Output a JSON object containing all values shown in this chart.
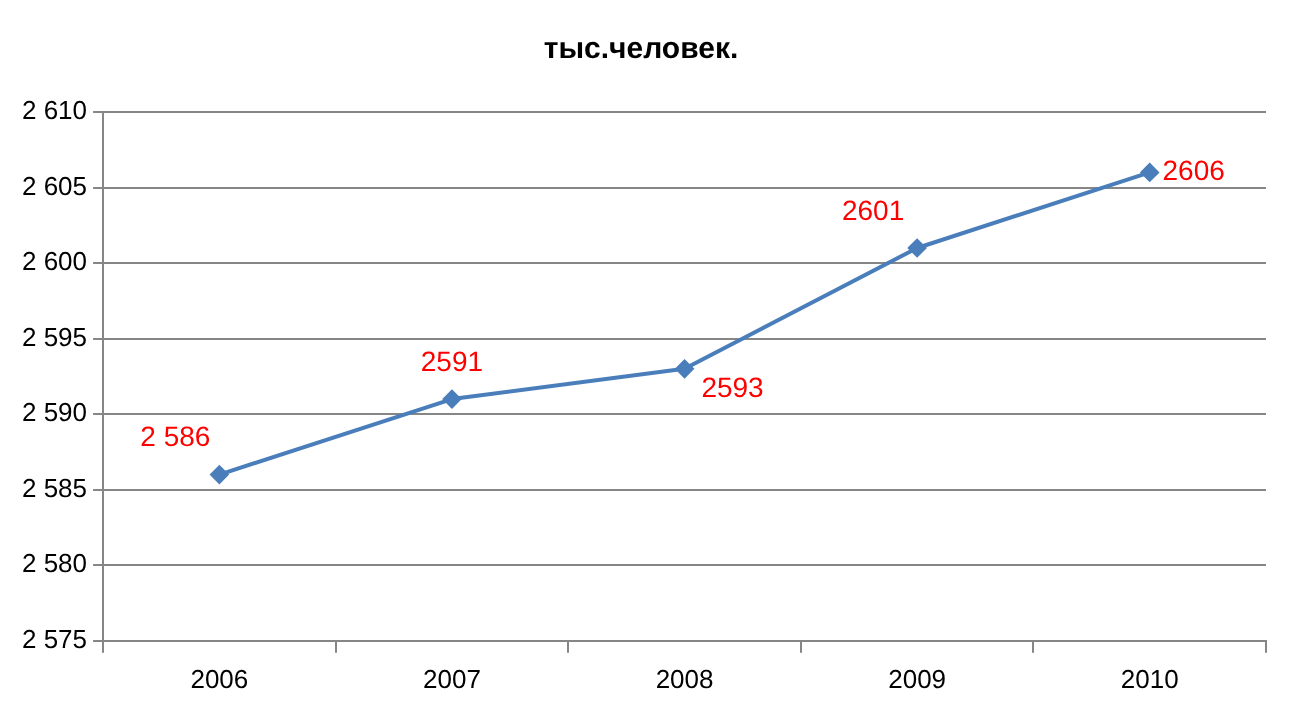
{
  "chart_data": {
    "type": "line",
    "title": "тыс.человек.",
    "categories": [
      "2006",
      "2007",
      "2008",
      "2009",
      "2010"
    ],
    "series": [
      {
        "color": "#4a7ebb",
        "values": [
          2586,
          2591,
          2593,
          2601,
          2606
        ],
        "value_labels": [
          "2 586",
          "2591",
          "2593",
          "2601",
          "2606"
        ]
      }
    ],
    "ylim": [
      2575,
      2610
    ],
    "yticks": [
      {
        "value": 2575,
        "label": "2 575"
      },
      {
        "value": 2580,
        "label": "2 580"
      },
      {
        "value": 2585,
        "label": "2 585"
      },
      {
        "value": 2590,
        "label": "2 590"
      },
      {
        "value": 2595,
        "label": "2 595"
      },
      {
        "value": 2600,
        "label": "2 600"
      },
      {
        "value": 2605,
        "label": "2 605"
      },
      {
        "value": 2610,
        "label": "2 610"
      }
    ],
    "grid": "y",
    "legend": false,
    "marker": "diamond",
    "line_style": "solid"
  }
}
